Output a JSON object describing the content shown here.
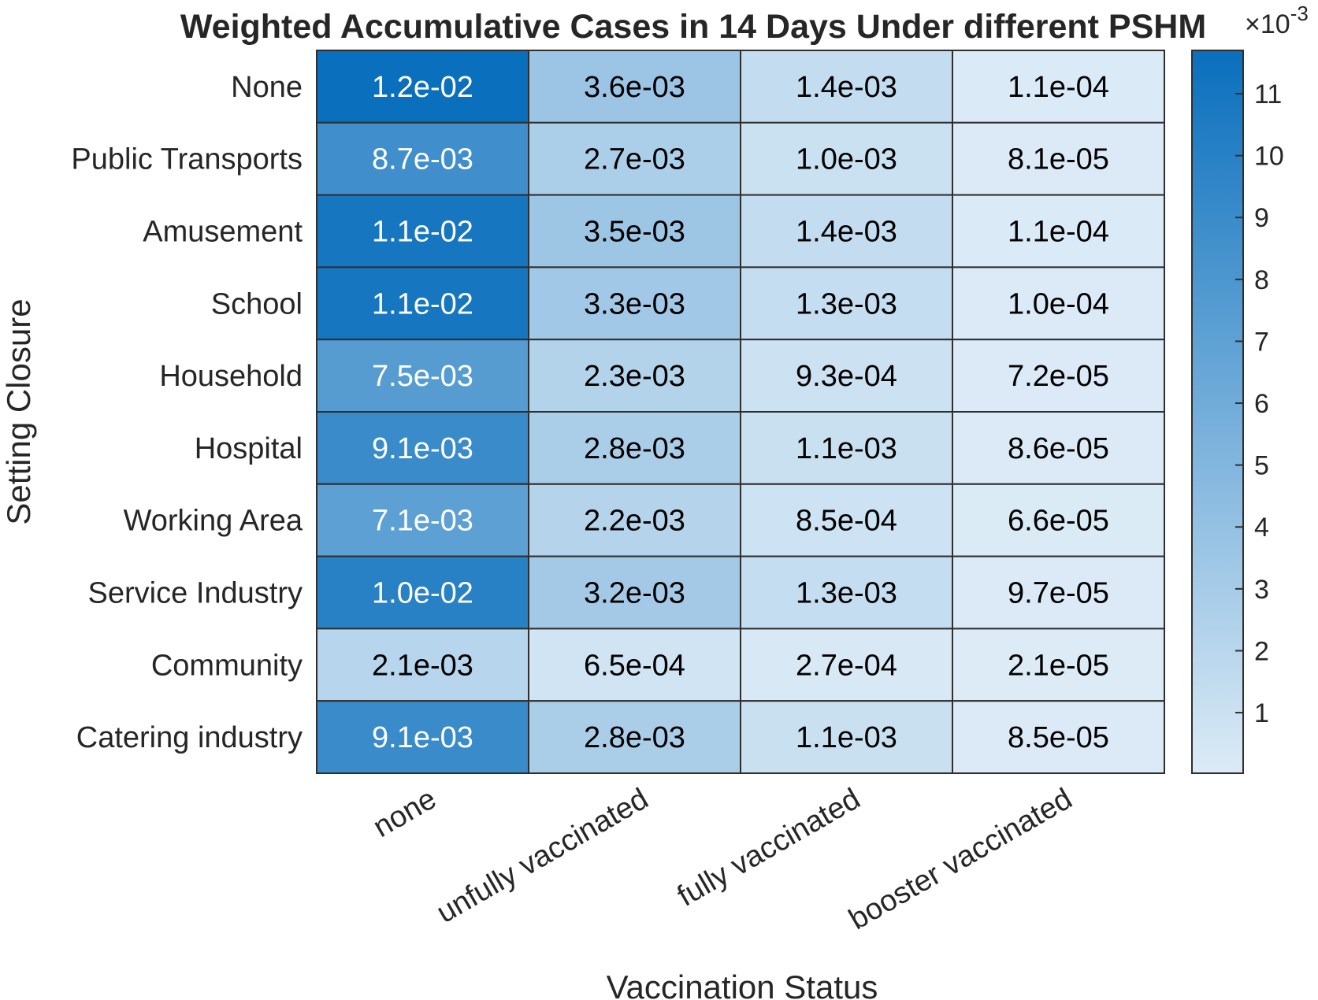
{
  "chart_data": {
    "type": "heatmap",
    "title": "Weighted Accumulative Cases in 14 Days Under different PSHM",
    "xlabel": "Vaccination Status",
    "ylabel": "Setting Closure",
    "x_categories": [
      "none",
      "unfully vaccinated",
      "fully vaccinated",
      "booster vaccinated"
    ],
    "y_categories": [
      "None",
      "Public Transports",
      "Amusement",
      "School",
      "Household",
      "Hospital",
      "Working Area",
      "Service Industry",
      "Community",
      "Catering industry"
    ],
    "values": [
      [
        0.012,
        0.0036,
        0.0014,
        0.00011
      ],
      [
        0.0087,
        0.0027,
        0.001,
        8.1e-05
      ],
      [
        0.011,
        0.0035,
        0.0014,
        0.00011
      ],
      [
        0.011,
        0.0033,
        0.0013,
        0.0001
      ],
      [
        0.0075,
        0.0023,
        0.00093,
        7.2e-05
      ],
      [
        0.0091,
        0.0028,
        0.0011,
        8.6e-05
      ],
      [
        0.0071,
        0.0022,
        0.00085,
        6.6e-05
      ],
      [
        0.01,
        0.0032,
        0.0013,
        9.7e-05
      ],
      [
        0.0021,
        0.00065,
        0.00027,
        2.1e-05
      ],
      [
        0.0091,
        0.0028,
        0.0011,
        8.5e-05
      ]
    ],
    "cell_labels": [
      [
        "1.2e-02",
        "3.6e-03",
        "1.4e-03",
        "1.1e-04"
      ],
      [
        "8.7e-03",
        "2.7e-03",
        "1.0e-03",
        "8.1e-05"
      ],
      [
        "1.1e-02",
        "3.5e-03",
        "1.4e-03",
        "1.1e-04"
      ],
      [
        "1.1e-02",
        "3.3e-03",
        "1.3e-03",
        "1.0e-04"
      ],
      [
        "7.5e-03",
        "2.3e-03",
        "9.3e-04",
        "7.2e-05"
      ],
      [
        "9.1e-03",
        "2.8e-03",
        "1.1e-03",
        "8.6e-05"
      ],
      [
        "7.1e-03",
        "2.2e-03",
        "8.5e-04",
        "6.6e-05"
      ],
      [
        "1.0e-02",
        "3.2e-03",
        "1.3e-03",
        "9.7e-05"
      ],
      [
        "2.1e-03",
        "6.5e-04",
        "2.7e-04",
        "2.1e-05"
      ],
      [
        "9.1e-03",
        "2.8e-03",
        "1.1e-03",
        "8.5e-05"
      ]
    ],
    "colorbar": {
      "ticks": [
        1,
        2,
        3,
        4,
        5,
        6,
        7,
        8,
        9,
        10,
        11
      ],
      "tick_labels": [
        "1",
        "2",
        "3",
        "4",
        "5",
        "6",
        "7",
        "8",
        "9",
        "10",
        "11"
      ],
      "range": [
        0.0211,
        11.7
      ],
      "exponent_label": "×10",
      "exponent": "-3"
    },
    "colors": {
      "low": "#dcebf6",
      "high": "#0a6fbd",
      "grid": "#2e2e2e",
      "dark_text": "#000000",
      "light_text": "#ffffff"
    }
  }
}
